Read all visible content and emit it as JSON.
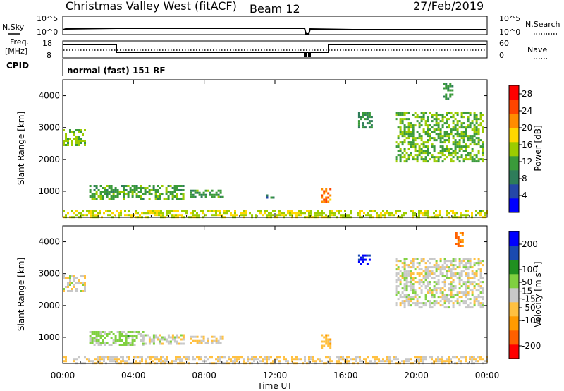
{
  "header": {
    "title": "Christmas Valley West (fitACF)",
    "beam": "Beam 12",
    "date": "27/Feb/2019"
  },
  "top_panels": {
    "nsky": {
      "label": "N.Sky",
      "ticks": [
        "10^5",
        "10^0"
      ]
    },
    "nsearch": {
      "label": "N.Search",
      "ticks": [
        "10^5",
        "10^0"
      ]
    },
    "freq": {
      "label_1": "Freq.",
      "label_2": "[MHz]",
      "ticks": [
        "18",
        "8"
      ]
    },
    "nave": {
      "label": "Nave",
      "ticks": [
        "60",
        "0"
      ]
    },
    "cpid": {
      "label": "CPID",
      "mode": "normal (fast) 151 RF"
    }
  },
  "colors": {
    "power_scale": [
      "#0000ff",
      "#2547a8",
      "#2e7d5a",
      "#3a9a3a",
      "#9ccc00",
      "#ffd700",
      "#ff8c00",
      "#ff4500",
      "#ff0000"
    ],
    "velocity_scale": [
      "#ff0000",
      "#ff6000",
      "#ff9a00",
      "#ffc040",
      "#c8c8c8",
      "#80d040",
      "#209020",
      "#1a4ab0",
      "#0000ff"
    ]
  },
  "chart_data": [
    {
      "type": "heatmap",
      "panel": "power",
      "ylabel": "Slant Range [km]",
      "y_ticks": [
        "4000",
        "3000",
        "2000",
        "1000"
      ],
      "ylim": [
        180,
        4500
      ],
      "colorbar": {
        "label": "Power [dB]",
        "ticks": [
          "28",
          "24",
          "20",
          "16",
          "12",
          "8",
          "4"
        ],
        "range": [
          0,
          30
        ]
      },
      "regions": [
        {
          "t": [
            0.0,
            1.2
          ],
          "r": [
            2450,
            2950
          ],
          "level": 14
        },
        {
          "t": [
            1.5,
            6.8
          ],
          "r": [
            780,
            1200
          ],
          "level": 12
        },
        {
          "t": [
            7.2,
            9.0
          ],
          "r": [
            800,
            1050
          ],
          "level": 11
        },
        {
          "t": [
            11.5,
            12.0
          ],
          "r": [
            830,
            900
          ],
          "level": 8
        },
        {
          "t": [
            14.6,
            15.1
          ],
          "r": [
            650,
            1100
          ],
          "level": 22
        },
        {
          "t": [
            16.7,
            17.5
          ],
          "r": [
            3000,
            3500
          ],
          "level": 10
        },
        {
          "t": [
            18.8,
            23.8
          ],
          "r": [
            1950,
            3500
          ],
          "level": 13
        },
        {
          "t": [
            21.5,
            22.0
          ],
          "r": [
            3900,
            4400
          ],
          "level": 10
        },
        {
          "t": [
            0.0,
            24.0
          ],
          "r": [
            180,
            420
          ],
          "level": 16
        }
      ]
    },
    {
      "type": "heatmap",
      "panel": "velocity",
      "xlabel": "Time UT",
      "ylabel": "Slant Range [km]",
      "x_ticks": [
        "00:00",
        "04:00",
        "08:00",
        "12:00",
        "16:00",
        "20:00",
        "00:00"
      ],
      "y_ticks": [
        "4000",
        "3000",
        "2000",
        "1000"
      ],
      "xlim": [
        0,
        24
      ],
      "ylim": [
        180,
        4500
      ],
      "colorbar": {
        "label": "Velocity [m s⁻¹]",
        "ticks": [
          "200",
          "100",
          "50",
          "15",
          "-15",
          "-50",
          "-100",
          "-200"
        ],
        "range": [
          -250,
          250
        ]
      },
      "regions": [
        {
          "t": [
            0.0,
            1.2
          ],
          "r": [
            2450,
            2950
          ],
          "level": 0
        },
        {
          "t": [
            1.5,
            4.5
          ],
          "r": [
            780,
            1200
          ],
          "level": 40
        },
        {
          "t": [
            4.5,
            6.8
          ],
          "r": [
            800,
            1100
          ],
          "level": 0
        },
        {
          "t": [
            7.2,
            9.0
          ],
          "r": [
            800,
            1050
          ],
          "level": -20
        },
        {
          "t": [
            14.6,
            15.1
          ],
          "r": [
            650,
            1100
          ],
          "level": -60
        },
        {
          "t": [
            16.7,
            17.3
          ],
          "r": [
            3300,
            3600
          ],
          "level": 220
        },
        {
          "t": [
            18.8,
            23.8
          ],
          "r": [
            1950,
            3500
          ],
          "level": 0
        },
        {
          "t": [
            22.2,
            22.6
          ],
          "r": [
            3900,
            4300
          ],
          "level": -150
        },
        {
          "t": [
            0.0,
            24.0
          ],
          "r": [
            180,
            420
          ],
          "level": -30
        }
      ]
    }
  ]
}
